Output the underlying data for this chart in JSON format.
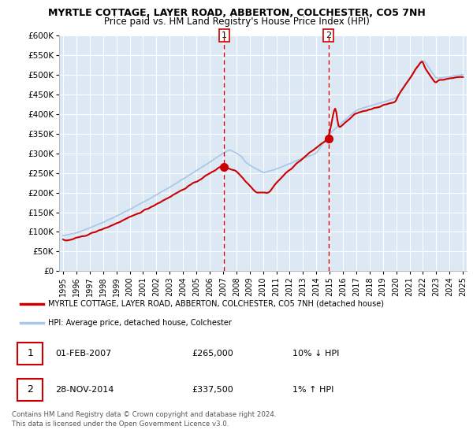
{
  "title1": "MYRTLE COTTAGE, LAYER ROAD, ABBERTON, COLCHESTER, CO5 7NH",
  "title2": "Price paid vs. HM Land Registry's House Price Index (HPI)",
  "background_color": "#dce9f5",
  "plot_bg_color": "#dce9f5",
  "hpi_color": "#aac8e8",
  "price_color": "#cc0000",
  "marker_color": "#cc0000",
  "vline_color": "#cc0000",
  "ylim_min": 0,
  "ylim_max": 600000,
  "yticks": [
    0,
    50000,
    100000,
    150000,
    200000,
    250000,
    300000,
    350000,
    400000,
    450000,
    500000,
    550000,
    600000
  ],
  "ytick_labels": [
    "£0",
    "£50K",
    "£100K",
    "£150K",
    "£200K",
    "£250K",
    "£300K",
    "£350K",
    "£400K",
    "£450K",
    "£500K",
    "£550K",
    "£600K"
  ],
  "sale1_t": 12.08,
  "sale1_price": 265000,
  "sale2_t": 19.92,
  "sale2_price": 337500,
  "legend_line1": "MYRTLE COTTAGE, LAYER ROAD, ABBERTON, COLCHESTER, CO5 7NH (detached house)",
  "legend_line2": "HPI: Average price, detached house, Colchester",
  "table_row1": [
    "1",
    "01-FEB-2007",
    "£265,000",
    "10% ↓ HPI"
  ],
  "table_row2": [
    "2",
    "28-NOV-2014",
    "£337,500",
    "1% ↑ HPI"
  ],
  "footer": "Contains HM Land Registry data © Crown copyright and database right 2024.\nThis data is licensed under the Open Government Licence v3.0.",
  "xlabel_years": [
    "1995",
    "1996",
    "1997",
    "1998",
    "1999",
    "2000",
    "2001",
    "2002",
    "2003",
    "2004",
    "2005",
    "2006",
    "2007",
    "2008",
    "2009",
    "2010",
    "2011",
    "2012",
    "2013",
    "2014",
    "2015",
    "2016",
    "2017",
    "2018",
    "2019",
    "2020",
    "2021",
    "2022",
    "2023",
    "2024",
    "2025"
  ]
}
